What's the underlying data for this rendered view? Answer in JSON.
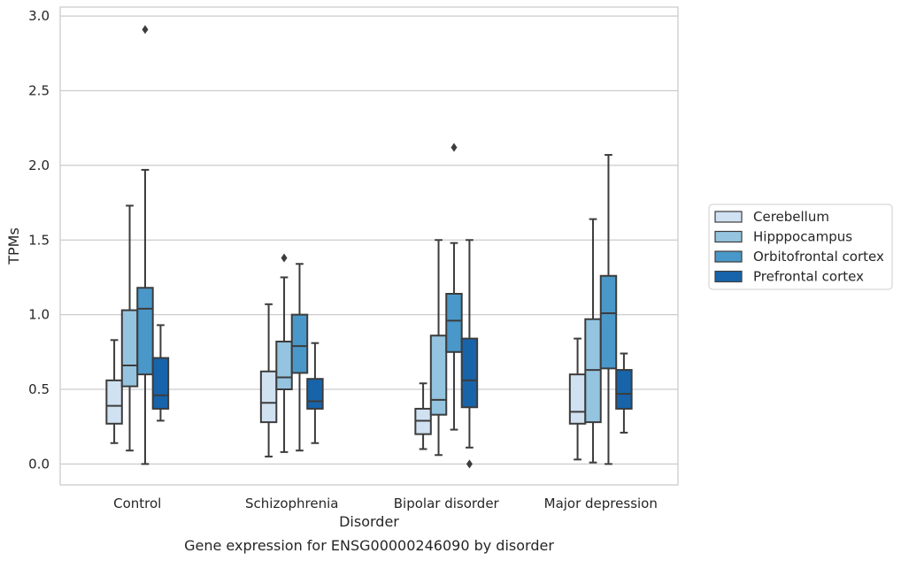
{
  "chart_data": {
    "type": "boxplot",
    "title": "Gene expression for ENSG00000246090 by disorder",
    "xlabel": "Disorder",
    "ylabel": "TPMs",
    "ylim": [
      -0.14,
      3.06
    ],
    "yticks": [
      "0.0",
      "0.5",
      "1.0",
      "1.5",
      "2.0",
      "2.5",
      "3.0"
    ],
    "grid": "horizontal",
    "legend_position": "right",
    "categories": [
      "Control",
      "Schizophrenia",
      "Bipolar disorder",
      "Major depression"
    ],
    "series": [
      {
        "name": "Cerebellum",
        "color": "#d0e1f2",
        "boxes": [
          {
            "whislo": 0.14,
            "q1": 0.27,
            "med": 0.39,
            "q3": 0.56,
            "whishi": 0.83,
            "fliers": []
          },
          {
            "whislo": 0.05,
            "q1": 0.28,
            "med": 0.41,
            "q3": 0.62,
            "whishi": 1.07,
            "fliers": []
          },
          {
            "whislo": 0.1,
            "q1": 0.2,
            "med": 0.29,
            "q3": 0.37,
            "whishi": 0.54,
            "fliers": []
          },
          {
            "whislo": 0.03,
            "q1": 0.27,
            "med": 0.35,
            "q3": 0.6,
            "whishi": 0.84,
            "fliers": []
          }
        ]
      },
      {
        "name": "Hipppocampus",
        "color": "#94c4df",
        "boxes": [
          {
            "whislo": 0.09,
            "q1": 0.52,
            "med": 0.66,
            "q3": 1.03,
            "whishi": 1.73,
            "fliers": []
          },
          {
            "whislo": 0.08,
            "q1": 0.5,
            "med": 0.58,
            "q3": 0.82,
            "whishi": 1.25,
            "fliers": [
              1.38
            ]
          },
          {
            "whislo": 0.06,
            "q1": 0.33,
            "med": 0.43,
            "q3": 0.86,
            "whishi": 1.5,
            "fliers": []
          },
          {
            "whislo": 0.01,
            "q1": 0.28,
            "med": 0.63,
            "q3": 0.97,
            "whishi": 1.64,
            "fliers": []
          }
        ]
      },
      {
        "name": "Orbitofrontal cortex",
        "color": "#4a98c9",
        "boxes": [
          {
            "whislo": 0.0,
            "q1": 0.6,
            "med": 1.04,
            "q3": 1.18,
            "whishi": 1.97,
            "fliers": [
              2.91
            ]
          },
          {
            "whislo": 0.09,
            "q1": 0.61,
            "med": 0.79,
            "q3": 1.0,
            "whishi": 1.34,
            "fliers": []
          },
          {
            "whislo": 0.23,
            "q1": 0.75,
            "med": 0.96,
            "q3": 1.14,
            "whishi": 1.48,
            "fliers": [
              2.12
            ]
          },
          {
            "whislo": 0.0,
            "q1": 0.64,
            "med": 1.01,
            "q3": 1.26,
            "whishi": 2.07,
            "fliers": []
          }
        ]
      },
      {
        "name": "Prefrontal cortex",
        "color": "#1764ab",
        "boxes": [
          {
            "whislo": 0.29,
            "q1": 0.37,
            "med": 0.46,
            "q3": 0.71,
            "whishi": 0.93,
            "fliers": []
          },
          {
            "whislo": 0.14,
            "q1": 0.37,
            "med": 0.42,
            "q3": 0.57,
            "whishi": 0.81,
            "fliers": []
          },
          {
            "whislo": 0.11,
            "q1": 0.38,
            "med": 0.56,
            "q3": 0.84,
            "whishi": 1.5,
            "fliers": [
              0.0
            ]
          },
          {
            "whislo": 0.21,
            "q1": 0.37,
            "med": 0.47,
            "q3": 0.63,
            "whishi": 0.74,
            "fliers": []
          }
        ]
      }
    ]
  }
}
